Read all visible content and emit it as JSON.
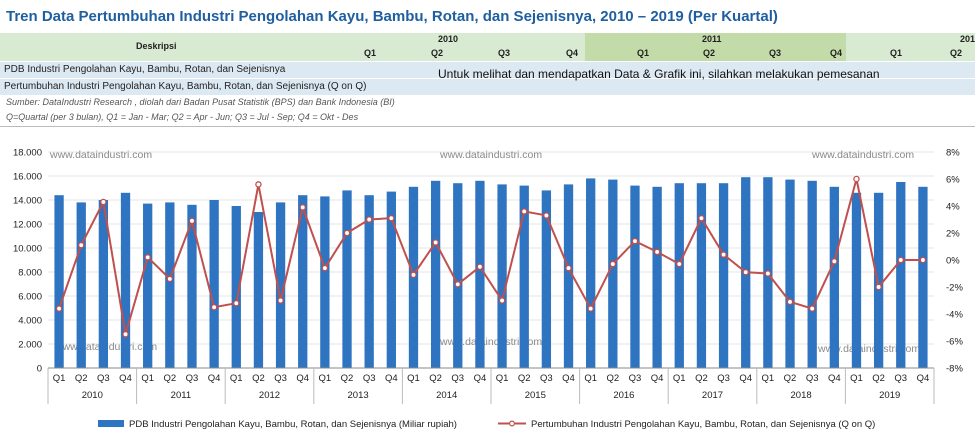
{
  "title": "Tren Data Pertumbuhan Industri Pengolahan Kayu, Bambu, Rotan, dan Sejenisnya, 2010 – 2019 (Per Kuartal)",
  "table": {
    "desc_header": "Deskripsi",
    "years": [
      "2010",
      "2011",
      "201"
    ],
    "quarters": [
      "Q1",
      "Q2",
      "Q3",
      "Q4",
      "Q1",
      "Q2",
      "Q3",
      "Q4",
      "Q1",
      "Q2"
    ],
    "rows": [
      "PDB Industri Pengolahan Kayu, Bambu, Rotan, dan Sejenisnya",
      "Pertumbuhan Industri Pengolahan Kayu, Bambu, Rotan, dan Sejenisnya (Q on Q)"
    ]
  },
  "notice": "Untuk melihat dan mendapatkan Data & Grafik ini, silahkan melakukan pemesanan",
  "source": "Sumber: DataIndustri Research , diolah dari Badan Pusat Statistik (BPS) dan Bank Indonesia (BI)",
  "quarter_note": "Q=Quartal (per 3 bulan), Q1 = Jan - Mar; Q2 = Apr - Jun; Q3 = Jul - Sep; Q4 = Okt - Des",
  "watermark": "www.dataindustri.com",
  "chart_data": {
    "type": "bar+line",
    "categories_quarter": [
      "Q1",
      "Q2",
      "Q3",
      "Q4",
      "Q1",
      "Q2",
      "Q3",
      "Q4",
      "Q1",
      "Q2",
      "Q3",
      "Q4",
      "Q1",
      "Q2",
      "Q3",
      "Q4",
      "Q1",
      "Q2",
      "Q3",
      "Q4",
      "Q1",
      "Q2",
      "Q3",
      "Q4",
      "Q1",
      "Q2",
      "Q3",
      "Q4",
      "Q1",
      "Q2",
      "Q3",
      "Q4",
      "Q1",
      "Q2",
      "Q3",
      "Q4",
      "Q1",
      "Q2",
      "Q3",
      "Q4"
    ],
    "years": [
      "2010",
      "2011",
      "2012",
      "2013",
      "2014",
      "2015",
      "2016",
      "2017",
      "2018",
      "2019"
    ],
    "series": [
      {
        "name": "PDB Industri Pengolahan Kayu, Bambu, Rotan, dan Sejenisnya (Miliar rupiah)",
        "type": "bar",
        "axis": "left",
        "color": "#2e74c0",
        "values": [
          14400,
          13800,
          14000,
          14600,
          13700,
          13800,
          13600,
          14000,
          13500,
          13000,
          13800,
          14400,
          14300,
          14800,
          14400,
          14700,
          15100,
          15600,
          15400,
          15600,
          15300,
          15200,
          14800,
          15300,
          15800,
          15700,
          15200,
          15100,
          15400,
          15400,
          15400,
          15900,
          15900,
          15700,
          15600,
          15100,
          14600,
          14600,
          15500,
          15100
        ]
      },
      {
        "name": "Pertumbuhan Industri Pengolahan Kayu, Bambu, Rotan, dan Sejenisnya (Q on Q)",
        "type": "line",
        "axis": "right",
        "color": "#c0504d",
        "values": [
          -3.6,
          1.1,
          4.3,
          -5.5,
          0.2,
          -1.4,
          2.9,
          -3.5,
          -3.2,
          5.6,
          -3.0,
          3.9,
          -0.6,
          2.0,
          3.0,
          3.1,
          -1.1,
          1.3,
          -1.8,
          -0.5,
          -3.0,
          3.6,
          3.3,
          -0.6,
          -3.6,
          -0.3,
          1.4,
          0.6,
          -0.3,
          3.1,
          0.4,
          -0.9,
          -1.0,
          -3.1,
          -3.6,
          -0.1,
          6.0,
          -2.0,
          0,
          0
        ]
      }
    ],
    "left_axis": {
      "min": 0,
      "max": 18000,
      "step": 2000,
      "tick_labels": [
        "0",
        "2.000",
        "4.000",
        "6.000",
        "8.000",
        "10.000",
        "12.000",
        "14.000",
        "16.000",
        "18.000"
      ]
    },
    "right_axis": {
      "min": -8,
      "max": 8,
      "step": 2,
      "tick_labels": [
        "-8%",
        "-6%",
        "-4%",
        "-2%",
        "0%",
        "2%",
        "4%",
        "6%",
        "8%"
      ]
    },
    "legend_position": "bottom"
  }
}
